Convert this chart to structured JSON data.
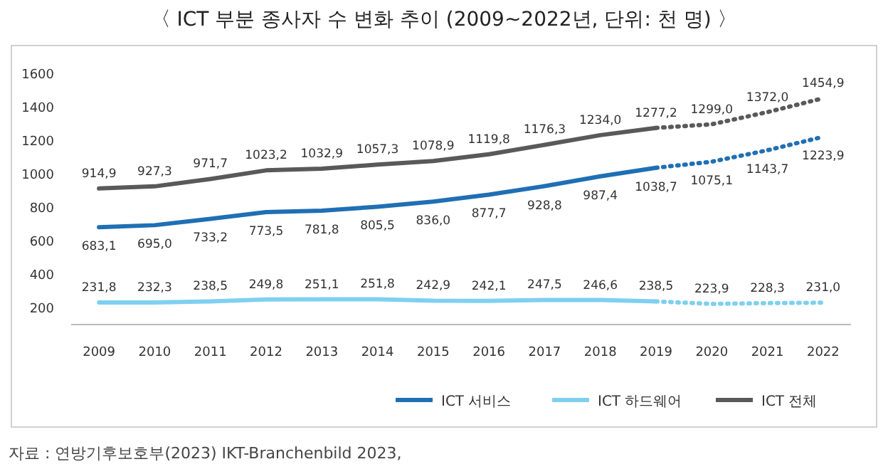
{
  "chart_data": {
    "type": "line",
    "title": "〈 ICT 부분 종사자 수 변화 추이 (2009~2022년, 단위: 천 명) 〉",
    "categories": [
      "2009",
      "2010",
      "2011",
      "2012",
      "2013",
      "2014",
      "2015",
      "2016",
      "2017",
      "2018",
      "2019",
      "2020",
      "2021",
      "2022"
    ],
    "ylim": [
      100,
      1600
    ],
    "yticks": [
      200,
      400,
      600,
      800,
      1000,
      1200,
      1400,
      1600
    ],
    "grid": false,
    "legend": "bottom",
    "marker": "none",
    "series": [
      {
        "name": "ICT 서비스",
        "color": "#1f6fb4",
        "line_style": "solid",
        "values": [
          683.1,
          695.0,
          733.2,
          773.5,
          781.8,
          805.5,
          836.0,
          877.7,
          928.8,
          987.4,
          1038.7,
          null,
          null,
          null
        ],
        "value_labels": [
          "683,1",
          "695,0",
          "733,2",
          "773,5",
          "781,8",
          "805,5",
          "836,0",
          "877,7",
          "928,8",
          "987,4",
          "1038,7",
          null,
          null,
          null
        ]
      },
      {
        "color": "#1f6fb4",
        "line_style": "dotted",
        "values": [
          null,
          null,
          null,
          null,
          null,
          null,
          null,
          null,
          null,
          null,
          1038.7,
          1075.1,
          1143.7,
          1223.9
        ],
        "value_labels": [
          null,
          null,
          null,
          null,
          null,
          null,
          null,
          null,
          null,
          null,
          null,
          "1075,1",
          "1143,7",
          "1223,9"
        ]
      },
      {
        "name": "ICT 하드웨어",
        "color": "#7fd0f0",
        "line_style": "solid",
        "values": [
          231.8,
          232.3,
          238.5,
          249.8,
          251.1,
          251.8,
          242.9,
          242.1,
          247.5,
          246.6,
          238.5,
          null,
          null,
          null
        ],
        "value_labels": [
          "231,8",
          "232,3",
          "238,5",
          "249,8",
          "251,1",
          "251,8",
          "242,9",
          "242,1",
          "247,5",
          "246,6",
          "238,5",
          null,
          null,
          null
        ]
      },
      {
        "color": "#7fd0f0",
        "line_style": "dotted",
        "values": [
          null,
          null,
          null,
          null,
          null,
          null,
          null,
          null,
          null,
          null,
          238.5,
          223.9,
          228.3,
          231.0
        ],
        "value_labels": [
          null,
          null,
          null,
          null,
          null,
          null,
          null,
          null,
          null,
          null,
          null,
          "223,9",
          "228,3",
          "231,0"
        ]
      },
      {
        "name": "ICT 전체",
        "color": "#595959",
        "line_style": "solid",
        "values": [
          914.9,
          927.3,
          971.7,
          1023.2,
          1032.9,
          1057.3,
          1078.9,
          1119.8,
          1176.3,
          1234.0,
          1277.2,
          null,
          null,
          null
        ],
        "value_labels": [
          "914,9",
          "927,3",
          "971,7",
          "1023,2",
          "1032,9",
          "1057,3",
          "1078,9",
          "1119,8",
          "1176,3",
          "1234,0",
          "1277,2",
          null,
          null,
          null
        ]
      },
      {
        "color": "#595959",
        "line_style": "dotted",
        "values": [
          null,
          null,
          null,
          null,
          null,
          null,
          null,
          null,
          null,
          null,
          1277.2,
          1299.0,
          1372.0,
          1454.9
        ],
        "value_labels": [
          null,
          null,
          null,
          null,
          null,
          null,
          null,
          null,
          null,
          null,
          null,
          "1299,0",
          "1372,0",
          "1454,9"
        ]
      }
    ],
    "annotations": [
      "자료 : 연방기후보호부(2023) IKT-Branchenbild 2023,"
    ]
  }
}
